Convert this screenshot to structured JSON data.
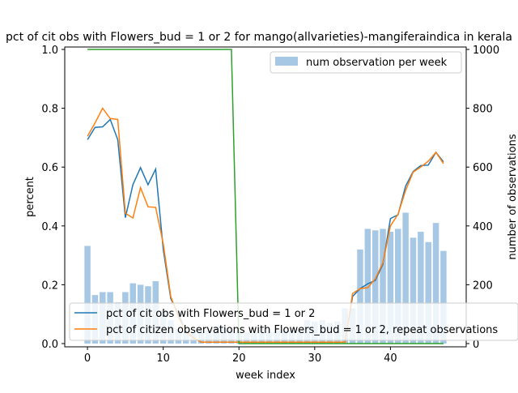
{
  "chart_data": {
    "type": "bar+line",
    "title": "pct of cit obs with Flowers_bud = 1 or 2 for mango(allvarieties)-mangiferaindica in kerala",
    "xlabel": "week index",
    "ylabel_left": "percent",
    "ylabel_right": "number of observations",
    "xlim": [
      -3,
      50
    ],
    "ylim_left": [
      0,
      1.0
    ],
    "ylim_right": [
      0,
      1000
    ],
    "x_ticks": [
      0,
      10,
      20,
      30,
      40
    ],
    "y_ticks_left": [
      "0.0",
      "0.2",
      "0.4",
      "0.6",
      "0.8",
      "1.0"
    ],
    "y_ticks_right": [
      "0",
      "200",
      "400",
      "600",
      "800",
      "1000"
    ],
    "legend_top_right": "num observation per week",
    "bars": {
      "name": "num observation per week",
      "color": "#a6c8e4",
      "x": [
        0,
        1,
        2,
        3,
        4,
        5,
        6,
        7,
        8,
        9,
        10,
        11,
        12,
        13,
        14,
        15,
        16,
        17,
        18,
        19,
        20,
        21,
        22,
        23,
        24,
        25,
        26,
        27,
        28,
        29,
        30,
        31,
        32,
        33,
        34,
        35,
        36,
        37,
        38,
        39,
        40,
        41,
        42,
        43,
        44,
        45,
        46,
        47
      ],
      "values": [
        332,
        165,
        175,
        175,
        140,
        175,
        205,
        200,
        195,
        212,
        115,
        80,
        50,
        45,
        40,
        45,
        45,
        60,
        55,
        45,
        40,
        40,
        40,
        50,
        40,
        45,
        50,
        45,
        50,
        80,
        75,
        80,
        70,
        75,
        120,
        120,
        320,
        390,
        385,
        390,
        380,
        390,
        445,
        360,
        380,
        345,
        410,
        315
      ]
    },
    "series": [
      {
        "name": "pct of cit obs with Flowers_bud = 1 or 2",
        "color": "#1f77b4",
        "x": [
          0,
          1,
          2,
          3,
          4,
          5,
          6,
          7,
          8,
          9,
          10,
          11,
          12,
          13,
          14,
          15,
          16,
          17,
          18,
          19,
          20,
          21,
          22,
          23,
          24,
          25,
          26,
          27,
          28,
          29,
          30,
          31,
          32,
          33,
          34,
          35,
          36,
          37,
          38,
          39,
          40,
          41,
          42,
          43,
          44,
          45,
          46,
          47
        ],
        "values": [
          0.693,
          0.735,
          0.737,
          0.762,
          0.693,
          0.428,
          0.54,
          0.598,
          0.54,
          0.593,
          0.32,
          0.153,
          0.1,
          0.04,
          0.02,
          0.005,
          0.005,
          0.005,
          0.005,
          0.005,
          0.005,
          0.005,
          0.005,
          0.005,
          0.005,
          0.005,
          0.005,
          0.005,
          0.005,
          0.005,
          0.005,
          0.005,
          0.005,
          0.005,
          0.005,
          0.16,
          0.187,
          0.203,
          0.215,
          0.27,
          0.425,
          0.438,
          0.535,
          0.585,
          0.605,
          0.607,
          0.65,
          0.618
        ]
      },
      {
        "name": "pct of citizen observations with Flowers_bud = 1 or 2, repeat observations",
        "color": "#ff7f0e",
        "x": [
          0,
          1,
          2,
          3,
          4,
          5,
          6,
          7,
          8,
          9,
          10,
          11,
          12,
          13,
          14,
          15,
          16,
          17,
          18,
          19,
          20,
          21,
          22,
          23,
          24,
          25,
          26,
          27,
          28,
          29,
          30,
          31,
          32,
          33,
          34,
          35,
          36,
          37,
          38,
          39,
          40,
          41,
          42,
          43,
          44,
          45,
          46,
          47
        ],
        "values": [
          0.705,
          0.75,
          0.8,
          0.765,
          0.762,
          0.443,
          0.427,
          0.53,
          0.465,
          0.463,
          0.34,
          0.16,
          0.09,
          0.04,
          0.02,
          0.005,
          0.005,
          0.005,
          0.005,
          0.005,
          0.005,
          0.005,
          0.005,
          0.005,
          0.005,
          0.005,
          0.005,
          0.005,
          0.005,
          0.005,
          0.005,
          0.005,
          0.005,
          0.005,
          0.005,
          0.17,
          0.187,
          0.19,
          0.22,
          0.275,
          0.4,
          0.44,
          0.52,
          0.583,
          0.6,
          0.62,
          0.65,
          0.612
        ]
      },
      {
        "name": "",
        "color": "#2ca02c",
        "x": [
          0,
          1,
          2,
          3,
          4,
          5,
          6,
          7,
          8,
          9,
          10,
          11,
          12,
          13,
          14,
          15,
          16,
          17,
          18,
          19,
          20,
          21,
          22,
          23,
          24,
          25,
          26,
          27,
          28,
          29,
          30,
          31,
          32,
          33,
          34,
          35,
          36,
          37,
          38,
          39,
          40,
          41,
          42,
          43,
          44,
          45,
          46,
          47
        ],
        "values": [
          1,
          1,
          1,
          1,
          1,
          1,
          1,
          1,
          1,
          1,
          1,
          1,
          1,
          1,
          1,
          1,
          1,
          1,
          1,
          1,
          0,
          0,
          0,
          0,
          0,
          0,
          0,
          0,
          0,
          0,
          0,
          0,
          0,
          0,
          0,
          0,
          0,
          0,
          0,
          0,
          0,
          0,
          0,
          0,
          0,
          0,
          0,
          0
        ]
      }
    ],
    "legend_bottom": [
      "pct of cit obs with Flowers_bud = 1 or 2",
      "pct of citizen observations with Flowers_bud = 1 or 2, repeat observations"
    ]
  }
}
